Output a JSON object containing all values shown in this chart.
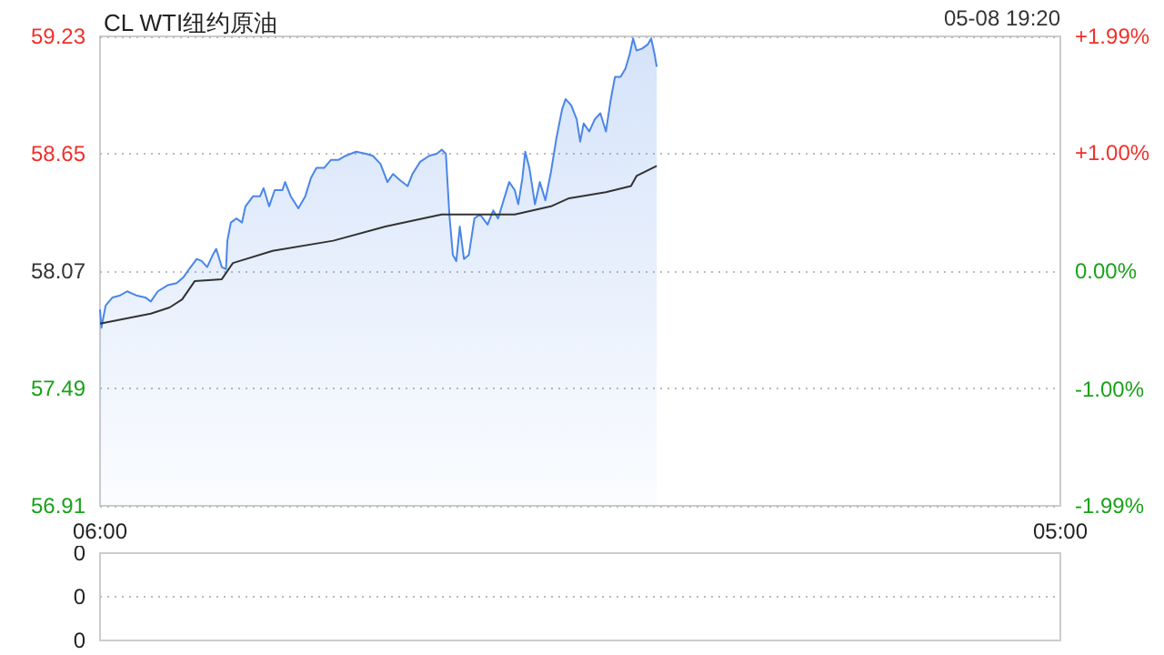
{
  "chart_data": [
    {
      "type": "area",
      "title": "CL WTI纽约原油",
      "annotations": [
        "05-08 19:20"
      ],
      "x": [
        "--05-08T06:00",
        "--05-08T06:02",
        "--05-08T06:08",
        "--05-08T06:18",
        "--05-08T06:29",
        "--05-08T06:39",
        "--05-08T06:52",
        "--05-08T07:05",
        "--05-08T07:13",
        "--05-08T07:23",
        "--05-08T07:37",
        "--05-08T07:50",
        "--05-08T08:00",
        "--05-08T08:08",
        "--05-08T08:19",
        "--05-08T08:26",
        "--05-08T08:34",
        "--05-08T08:42",
        "--05-08T08:47",
        "--05-08T08:55",
        "--05-08T09:01",
        "--05-08T09:03",
        "--05-08T09:08",
        "--05-08T09:16",
        "--05-08T09:24",
        "--05-08T09:29",
        "--05-08T09:40",
        "--05-08T09:50",
        "--05-08T09:55",
        "--05-08T10:03",
        "--05-08T10:11",
        "--05-08T10:22",
        "--05-08T10:26",
        "--05-08T10:34",
        "--05-08T10:45",
        "--05-08T10:55",
        "--05-08T11:03",
        "--05-08T11:11",
        "--05-08T11:22",
        "--05-08T11:32",
        "--05-08T11:43",
        "--05-08T11:53",
        "--05-08T12:08",
        "--05-08T12:22",
        "--05-08T12:32",
        "--05-08T12:43",
        "--05-08T12:53",
        "--05-08T13:01",
        "--05-08T13:11",
        "--05-08T13:22",
        "--05-08T13:29",
        "--05-08T13:40",
        "--05-08T13:53",
        "--05-08T14:04",
        "--05-08T14:11",
        "--05-08T14:17",
        "--05-08T14:22",
        "--05-08T14:27",
        "--05-08T14:32",
        "--05-08T14:37",
        "--05-08T14:43",
        "--05-08T14:50",
        "--05-08T14:58",
        "--05-08T15:06",
        "--05-08T15:17",
        "--05-08T15:25",
        "--05-08T15:32",
        "--05-08T15:40",
        "--05-08T15:48",
        "--05-08T15:56",
        "--05-08T16:01",
        "--05-08T16:07",
        "--05-08T16:11",
        "--05-08T16:17",
        "--05-08T16:25",
        "--05-08T16:32",
        "--05-08T16:40",
        "--05-08T16:48",
        "--05-08T16:56",
        "--05-08T17:04",
        "--05-08T17:09",
        "--05-08T17:17",
        "--05-08T17:25",
        "--05-08T17:30",
        "--05-08T17:35",
        "--05-08T17:43",
        "--05-08T17:51",
        "--05-08T17:59",
        "--05-08T18:07",
        "--05-08T18:14",
        "--05-08T18:20",
        "--05-08T18:28",
        "--05-08T18:35",
        "--05-08T18:41",
        "--05-08T18:46",
        "--05-08T18:51",
        "--05-08T18:59",
        "--05-08T19:07",
        "--05-08T19:12",
        "--05-08T19:17",
        "--05-08T19:20"
      ],
      "series": [
        {
          "color": "#4a86e8",
          "values": [
            57.88,
            57.79,
            57.9,
            57.94,
            57.95,
            57.97,
            57.95,
            57.94,
            57.92,
            57.97,
            58.0,
            58.01,
            58.04,
            58.08,
            58.13,
            58.12,
            58.09,
            58.15,
            58.18,
            58.09,
            58.08,
            58.22,
            58.31,
            58.33,
            58.31,
            58.39,
            58.44,
            58.44,
            58.48,
            58.39,
            58.47,
            58.47,
            58.51,
            58.44,
            58.38,
            58.44,
            58.53,
            58.58,
            58.58,
            58.62,
            58.62,
            58.64,
            58.66,
            58.65,
            58.64,
            58.6,
            58.51,
            58.55,
            58.52,
            58.49,
            58.55,
            58.61,
            58.64,
            58.65,
            58.67,
            58.65,
            58.35,
            58.15,
            58.12,
            58.29,
            58.13,
            58.15,
            58.33,
            58.35,
            58.3,
            58.37,
            58.33,
            58.42,
            58.51,
            58.47,
            58.4,
            58.53,
            58.66,
            58.58,
            58.4,
            58.51,
            58.42,
            58.56,
            58.73,
            58.87,
            58.92,
            58.89,
            58.82,
            58.71,
            58.8,
            58.76,
            58.82,
            58.85,
            58.76,
            58.92,
            59.03,
            59.03,
            59.07,
            59.14,
            59.22,
            59.16,
            59.17,
            59.19,
            59.22,
            59.14,
            59.08
          ]
        },
        {
          "type": "line",
          "color": "#333333",
          "x": [
            "--05-08T06:00",
            "--05-08T07:13",
            "--05-08T07:40",
            "--05-08T07:58",
            "--05-08T08:16",
            "--05-08T08:55",
            "--05-08T09:11",
            "--05-08T10:08",
            "--05-08T11:35",
            "--05-08T12:50",
            "--05-08T14:11",
            "--05-08T15:56",
            "--05-08T16:48",
            "--05-08T17:14",
            "--05-08T18:07",
            "--05-08T18:43",
            "--05-08T18:51",
            "--05-08T19:20"
          ],
          "values": [
            57.81,
            57.86,
            57.89,
            57.93,
            58.02,
            58.03,
            58.11,
            58.17,
            58.22,
            58.29,
            58.35,
            58.35,
            58.39,
            58.43,
            58.46,
            58.49,
            58.54,
            58.59
          ]
        }
      ],
      "xlim": [
        "--05-08T06:00",
        "--05-09T05:00"
      ],
      "xticks": [
        {
          "value": "--05-08T06:00",
          "label": "06:00"
        },
        {
          "value": "--05-09T05:00",
          "label": "05:00"
        }
      ],
      "ylim": [
        56.91,
        59.23
      ],
      "yticks": [
        56.91,
        57.49,
        58.07,
        58.65,
        59.23
      ],
      "y2lim": [
        -1.99,
        1.99
      ],
      "y2ticks": [
        {
          "value": -1.99,
          "label": "-1.99%"
        },
        {
          "value": -1.0,
          "label": "-1.00%"
        },
        {
          "value": 0,
          "label": "0.00%"
        },
        {
          "value": 1.0,
          "label": "+1.00%"
        },
        {
          "value": 1.99,
          "label": "+1.99%"
        }
      ],
      "grid": "y",
      "marker": "none"
    },
    {
      "type": "other",
      "annotations": [
        "0",
        "0",
        "0"
      ]
    }
  ]
}
